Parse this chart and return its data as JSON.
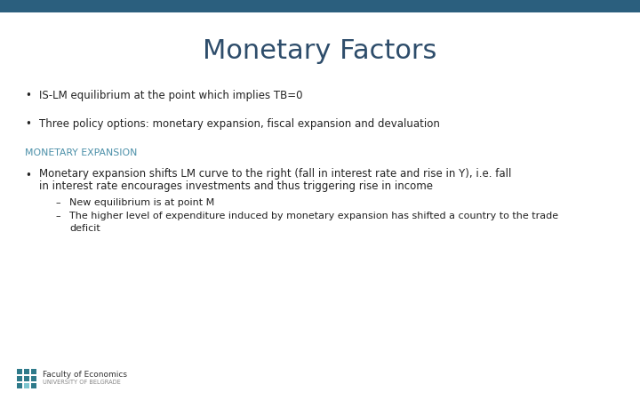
{
  "title": "Monetary Factors",
  "title_color": "#2E4D6B",
  "title_fontsize": 22,
  "background_color": "#FFFFFF",
  "top_bar_color": "#2B5F7E",
  "bullet1": "IS-LM equilibrium at the point which implies TB=0",
  "bullet2": "Three policy options: monetary expansion, fiscal expansion and devaluation",
  "section_header": "MONETARY EXPANSION",
  "section_header_color": "#4A8FA8",
  "bullet3_line1": "Monetary expansion shifts LM curve to the right (fall in interest rate and rise in Y), i.e. fall",
  "bullet3_line2": "in interest rate encourages investments and thus triggering rise in income",
  "sub_bullet1": "New equilibrium is at point M",
  "sub_bullet2_line1": "The higher level of expenditure induced by monetary expansion has shifted a country to the trade",
  "sub_bullet2_line2": "deficit",
  "text_color": "#222222",
  "body_fontsize": 8.5,
  "section_fontsize": 7.8,
  "sub_fontsize": 8.0,
  "logo_text1": "Faculty of Economics",
  "logo_text2": "UNIVERSITY OF BELGRADE",
  "logo_dot_color1": "#2E7A8A",
  "logo_dot_color2": "#7DC5CF",
  "logo_text_color1": "#333333",
  "logo_text_color2": "#888888"
}
